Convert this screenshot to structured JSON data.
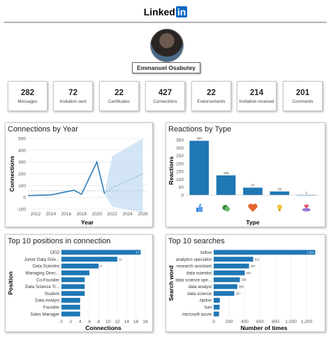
{
  "header": {
    "logo_text": "Linked",
    "logo_in": "in"
  },
  "profile": {
    "name": "Emmanuel Osabutey"
  },
  "kpis": [
    {
      "value": "282",
      "label": "Messages"
    },
    {
      "value": "72",
      "label": "Invitation sent"
    },
    {
      "value": "22",
      "label": "Certificates"
    },
    {
      "value": "427",
      "label": "Connections"
    },
    {
      "value": "22",
      "label": "Endorsements"
    },
    {
      "value": "214",
      "label": "Invitation received"
    },
    {
      "value": "201",
      "label": "Comments"
    }
  ],
  "colors": {
    "bar": "#118dff",
    "bar_dark": "#1f77b4",
    "line": "#2b7bb9",
    "forecast": "#c6ddf2"
  },
  "chart_data": [
    {
      "type": "line",
      "title": "Connections by Year",
      "xlabel": "Year",
      "ylabel": "Connections",
      "x": [
        2011,
        2014,
        2017,
        2018,
        2020,
        2021
      ],
      "values": [
        15,
        20,
        60,
        25,
        300,
        30
      ],
      "forecast": {
        "x": [
          2021,
          2022,
          2026
        ],
        "values": [
          30,
          80,
          200
        ],
        "upper": [
          30,
          350,
          500
        ],
        "lower": [
          30,
          -80,
          -130
        ]
      },
      "ylim": [
        -100,
        500
      ],
      "yticks": [
        "-100",
        "0",
        "100",
        "200",
        "300",
        "400",
        "500"
      ],
      "xticks": [
        "2012",
        "2014",
        "2016",
        "2018",
        "2020",
        "2022",
        "2024",
        "2026"
      ]
    },
    {
      "type": "bar",
      "title": "Reactions by Type",
      "xlabel": "Type",
      "ylabel": "Reactions",
      "categories": [
        "like",
        "praise",
        "empathy",
        "interest",
        "appreciation"
      ],
      "category_icons": [
        "thumbs-up-icon",
        "clapping-hands-icon",
        "heart-icon",
        "lightbulb-icon",
        "hand-heart-icon"
      ],
      "values": [
        344,
        125,
        47,
        23,
        1
      ],
      "data_labels": [
        "344",
        "125",
        "47",
        "23",
        "1"
      ],
      "ylim": [
        0,
        350
      ],
      "yticks": [
        "0",
        "50",
        "100",
        "150",
        "200",
        "250",
        "300",
        "350"
      ]
    },
    {
      "type": "bar",
      "orientation": "horizontal",
      "title": "Top 10 positions in connection",
      "xlabel": "Connections",
      "ylabel": "Position",
      "categories": [
        "CEO",
        "Junior Data Scie...",
        "Data Scientist",
        "Managing Direc...",
        "Co-Founder",
        "Data Science Tr...",
        "Student",
        "Data Analyst",
        "Founder",
        "Sales Manager"
      ],
      "values": [
        17,
        12,
        8,
        6,
        5,
        5,
        5,
        4,
        4,
        4
      ],
      "data_labels": [
        "17",
        "12",
        "8",
        "",
        "",
        "",
        "",
        "",
        "",
        ""
      ],
      "xlim": [
        0,
        18
      ],
      "xticks": [
        "0",
        "2",
        "4",
        "6",
        "8",
        "10",
        "12",
        "14",
        "16",
        "18"
      ]
    },
    {
      "type": "bar",
      "orientation": "horizontal",
      "title": "Top 10 searches",
      "xlabel": "Number of times",
      "ylabel": "Search word",
      "categories": [
        "tullow",
        "analytics specialist",
        "research assistant",
        "data scientist",
        "data science spe...",
        "data analyst",
        "data science",
        "zipline",
        "fuel",
        "microsoft azure"
      ],
      "values": [
        1314,
        511,
        457,
        401,
        339,
        306,
        267,
        80,
        77,
        69
      ],
      "data_labels": [
        "1,314",
        "511",
        "457",
        "401",
        "339",
        "306",
        "267",
        "",
        "",
        ""
      ],
      "xlim": [
        0,
        1300
      ],
      "xticks": [
        "0",
        "200",
        "400",
        "600",
        "800",
        "1,000",
        "1,200"
      ]
    }
  ]
}
